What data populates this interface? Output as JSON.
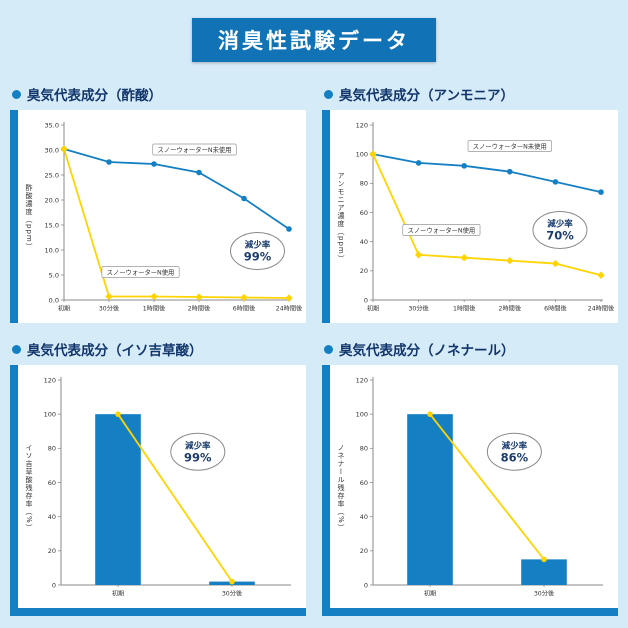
{
  "page": {
    "title": "消臭性試験データ"
  },
  "colors": {
    "background": "#d6ebf8",
    "panel": "#ffffff",
    "blue": "#1480c3",
    "title_bg": "#1173b6",
    "yellow": "#ffd400",
    "heading_text": "#12356b",
    "axis": "#8a8a8a",
    "tick_text": "#333333",
    "bubble_text": "#1b3c6e"
  },
  "chart_data": [
    {
      "id": "acetic-acid",
      "type": "line",
      "title": "臭気代表成分（酢酸）",
      "ylabel": "酢酸濃度（ppm）",
      "categories": [
        "初期",
        "30分後",
        "1時間後",
        "2時間後",
        "6時間後",
        "24時間後"
      ],
      "ylim": [
        0,
        35
      ],
      "ytick_step": 5,
      "ytick_decimals": 1,
      "series": [
        {
          "name": "スノーウォーターN未使用",
          "color_key": "blue",
          "marker": "circle",
          "values": [
            30.2,
            27.6,
            27.2,
            25.5,
            20.3,
            14.2
          ]
        },
        {
          "name": "スノーウォーターN使用",
          "color_key": "yellow",
          "marker": "diamond",
          "values": [
            30.2,
            0.7,
            0.7,
            0.6,
            0.5,
            0.4
          ]
        }
      ],
      "series_labels": [
        {
          "series": 0,
          "fx": 0.58,
          "fy": 0.14
        },
        {
          "series": 1,
          "fx": 0.34,
          "fy": 0.84
        }
      ],
      "bubble": {
        "line1": "減少率",
        "line2": "99%",
        "fx": 0.86,
        "fy": 0.72
      }
    },
    {
      "id": "ammonia",
      "type": "line",
      "title": "臭気代表成分（アンモニア）",
      "ylabel": "アンモニア濃度（ppm）",
      "categories": [
        "初期",
        "30分後",
        "1時間後",
        "2時間後",
        "6時間後",
        "24時間後"
      ],
      "ylim": [
        0,
        120
      ],
      "ytick_step": 20,
      "ytick_decimals": 0,
      "series": [
        {
          "name": "スノーウォーターN未使用",
          "color_key": "blue",
          "marker": "circle",
          "values": [
            100,
            94,
            92,
            88,
            81,
            74
          ]
        },
        {
          "name": "スノーウォーターN使用",
          "color_key": "yellow",
          "marker": "diamond",
          "values": [
            100,
            31,
            29,
            27,
            25,
            17
          ]
        }
      ],
      "series_labels": [
        {
          "series": 0,
          "fx": 0.6,
          "fy": 0.12
        },
        {
          "series": 1,
          "fx": 0.3,
          "fy": 0.6
        }
      ],
      "bubble": {
        "line1": "減少率",
        "line2": "70%",
        "fx": 0.82,
        "fy": 0.6
      }
    },
    {
      "id": "isovaleric-acid",
      "type": "bar",
      "title": "臭気代表成分（イソ吉草酸）",
      "ylabel": "イソ吉草酸残存率（%）",
      "categories": [
        "初期",
        "30分後"
      ],
      "ylim": [
        0,
        120
      ],
      "ytick_step": 20,
      "ytick_decimals": 0,
      "bar_values": [
        100,
        2
      ],
      "line_values": [
        100,
        2
      ],
      "bubble": {
        "line1": "減少率",
        "line2": "99%",
        "fx": 0.6,
        "fy": 0.35
      }
    },
    {
      "id": "nonenal",
      "type": "bar",
      "title": "臭気代表成分（ノネナール）",
      "ylabel": "ノネナール残存率（%）",
      "categories": [
        "初期",
        "30分後"
      ],
      "ylim": [
        0,
        120
      ],
      "ytick_step": 20,
      "ytick_decimals": 0,
      "bar_values": [
        100,
        15
      ],
      "line_values": [
        100,
        15
      ],
      "bubble": {
        "line1": "減少率",
        "line2": "86%",
        "fx": 0.62,
        "fy": 0.35
      }
    }
  ]
}
